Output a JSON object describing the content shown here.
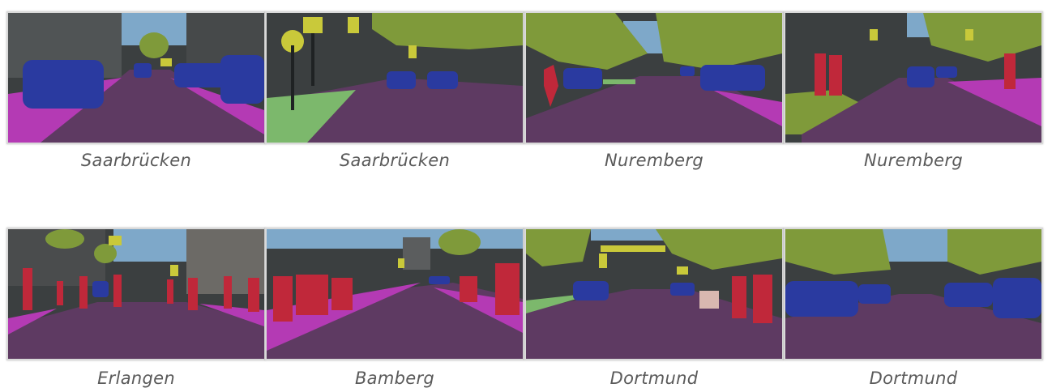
{
  "gallery": {
    "row1": [
      {
        "city": "Saarbrücken"
      },
      {
        "city": "Saarbrücken"
      },
      {
        "city": "Nuremberg"
      },
      {
        "city": "Nuremberg"
      }
    ],
    "row2": [
      {
        "city": "Erlangen"
      },
      {
        "city": "Bamberg"
      },
      {
        "city": "Dortmund"
      },
      {
        "city": "Dortmund"
      }
    ]
  },
  "legend_colors": {
    "road": "#5e3a62",
    "sidewalk": "#b43ab4",
    "vehicle": "#2a3aa0",
    "vegetation": "#7f9a3a",
    "person": "#c0283a",
    "sign": "#c9c93a",
    "terrain": "#7cb86c",
    "sky": "#7ea8c9",
    "building": "#3b3f40"
  }
}
